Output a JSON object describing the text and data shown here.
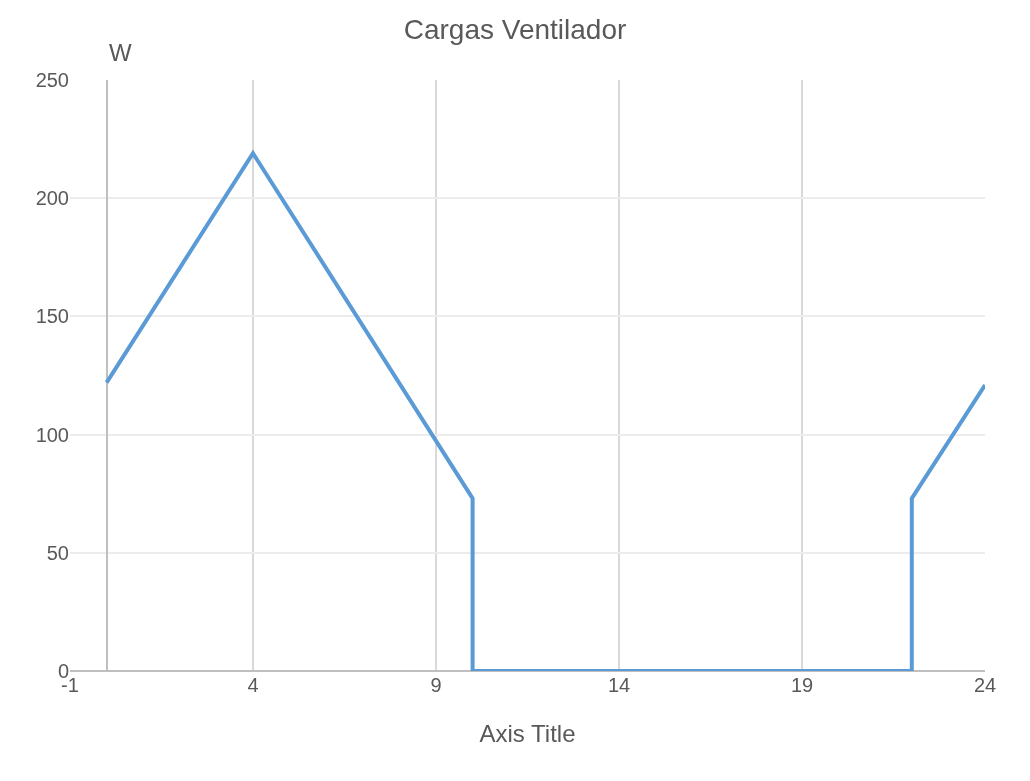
{
  "chart_data": {
    "type": "line",
    "title": "Cargas Ventilador",
    "ylabel": "W",
    "xlabel": "Axis Title",
    "x": [
      0,
      4,
      10,
      10,
      22,
      22,
      24
    ],
    "series": [
      {
        "color": "#5b9bd5",
        "values": [
          122,
          219,
          73,
          0,
          0,
          73,
          121
        ]
      }
    ],
    "xlim": [
      -1,
      24
    ],
    "xticks": [
      -1,
      4,
      9,
      14,
      19,
      24
    ],
    "ylim": [
      0,
      250
    ],
    "yticks": [
      0,
      50,
      100,
      150,
      200,
      250
    ],
    "grid": true,
    "marker": "none",
    "line_style": "solid"
  }
}
